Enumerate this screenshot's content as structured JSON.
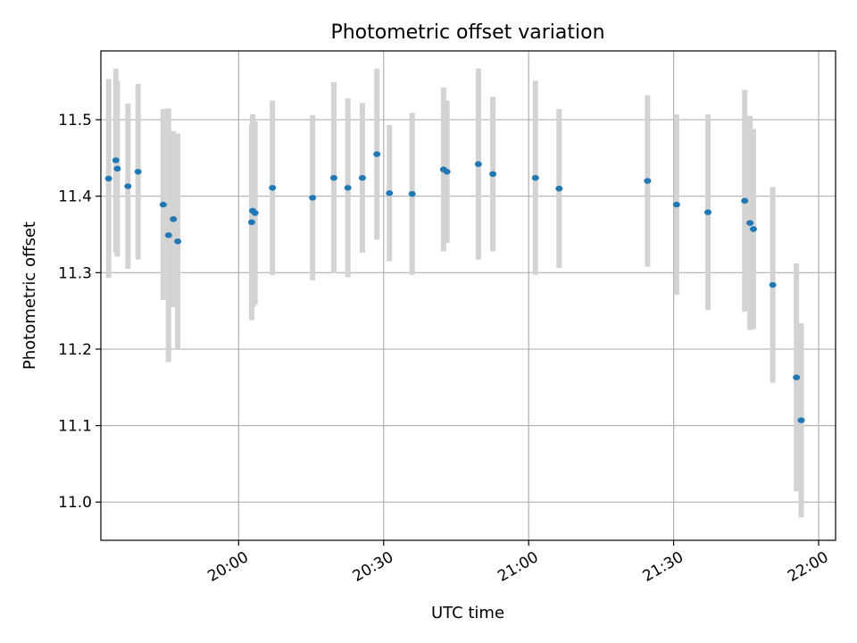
{
  "chart_data": {
    "type": "scatter",
    "title": "Photometric offset variation",
    "xlabel": "UTC time",
    "ylabel": "Photometric offset",
    "x_unit": "minutes since 00:00 UTC",
    "xlim": [
      1171.5,
      1323.5
    ],
    "ylim": [
      10.95,
      11.59
    ],
    "x_ticks": [
      {
        "value": 1200,
        "label": "20:00"
      },
      {
        "value": 1230,
        "label": "20:30"
      },
      {
        "value": 1260,
        "label": "21:00"
      },
      {
        "value": 1290,
        "label": "21:30"
      },
      {
        "value": 1320,
        "label": "22:00"
      }
    ],
    "y_ticks": [
      {
        "value": 11.0,
        "label": "11.0"
      },
      {
        "value": 11.1,
        "label": "11.1"
      },
      {
        "value": 11.2,
        "label": "11.2"
      },
      {
        "value": 11.3,
        "label": "11.3"
      },
      {
        "value": 11.4,
        "label": "11.4"
      },
      {
        "value": 11.5,
        "label": "11.5"
      }
    ],
    "grid": true,
    "point_color": "#1f77b4",
    "errorbar_color": "#d3d3d3",
    "points": [
      {
        "x": 1173.1,
        "y": 11.423,
        "err": 0.13
      },
      {
        "x": 1174.6,
        "y": 11.447,
        "err": 0.12
      },
      {
        "x": 1174.9,
        "y": 11.436,
        "err": 0.115
      },
      {
        "x": 1177.1,
        "y": 11.413,
        "err": 0.108
      },
      {
        "x": 1179.2,
        "y": 11.432,
        "err": 0.115
      },
      {
        "x": 1184.4,
        "y": 11.389,
        "err": 0.125
      },
      {
        "x": 1185.5,
        "y": 11.349,
        "err": 0.166
      },
      {
        "x": 1186.5,
        "y": 11.37,
        "err": 0.115
      },
      {
        "x": 1187.4,
        "y": 11.341,
        "err": 0.141
      },
      {
        "x": 1202.7,
        "y": 11.366,
        "err": 0.128
      },
      {
        "x": 1202.9,
        "y": 11.381,
        "err": 0.126
      },
      {
        "x": 1203.4,
        "y": 11.378,
        "err": 0.12
      },
      {
        "x": 1207.0,
        "y": 11.411,
        "err": 0.114
      },
      {
        "x": 1215.3,
        "y": 11.398,
        "err": 0.108
      },
      {
        "x": 1219.7,
        "y": 11.424,
        "err": 0.125
      },
      {
        "x": 1222.6,
        "y": 11.411,
        "err": 0.117
      },
      {
        "x": 1225.6,
        "y": 11.424,
        "err": 0.098
      },
      {
        "x": 1228.6,
        "y": 11.455,
        "err": 0.112
      },
      {
        "x": 1231.2,
        "y": 11.404,
        "err": 0.089
      },
      {
        "x": 1235.9,
        "y": 11.403,
        "err": 0.106
      },
      {
        "x": 1242.4,
        "y": 11.435,
        "err": 0.107
      },
      {
        "x": 1243.1,
        "y": 11.432,
        "err": 0.093
      },
      {
        "x": 1249.6,
        "y": 11.442,
        "err": 0.125
      },
      {
        "x": 1252.6,
        "y": 11.429,
        "err": 0.101
      },
      {
        "x": 1261.4,
        "y": 11.424,
        "err": 0.127
      },
      {
        "x": 1266.3,
        "y": 11.41,
        "err": 0.104
      },
      {
        "x": 1284.6,
        "y": 11.42,
        "err": 0.112
      },
      {
        "x": 1290.6,
        "y": 11.389,
        "err": 0.118
      },
      {
        "x": 1297.1,
        "y": 11.379,
        "err": 0.128
      },
      {
        "x": 1304.7,
        "y": 11.394,
        "err": 0.145
      },
      {
        "x": 1305.8,
        "y": 11.365,
        "err": 0.14
      },
      {
        "x": 1306.5,
        "y": 11.357,
        "err": 0.131
      },
      {
        "x": 1310.5,
        "y": 11.284,
        "err": 0.128
      },
      {
        "x": 1315.4,
        "y": 11.163,
        "err": 0.149
      },
      {
        "x": 1316.4,
        "y": 11.107,
        "err": 0.127
      }
    ]
  }
}
